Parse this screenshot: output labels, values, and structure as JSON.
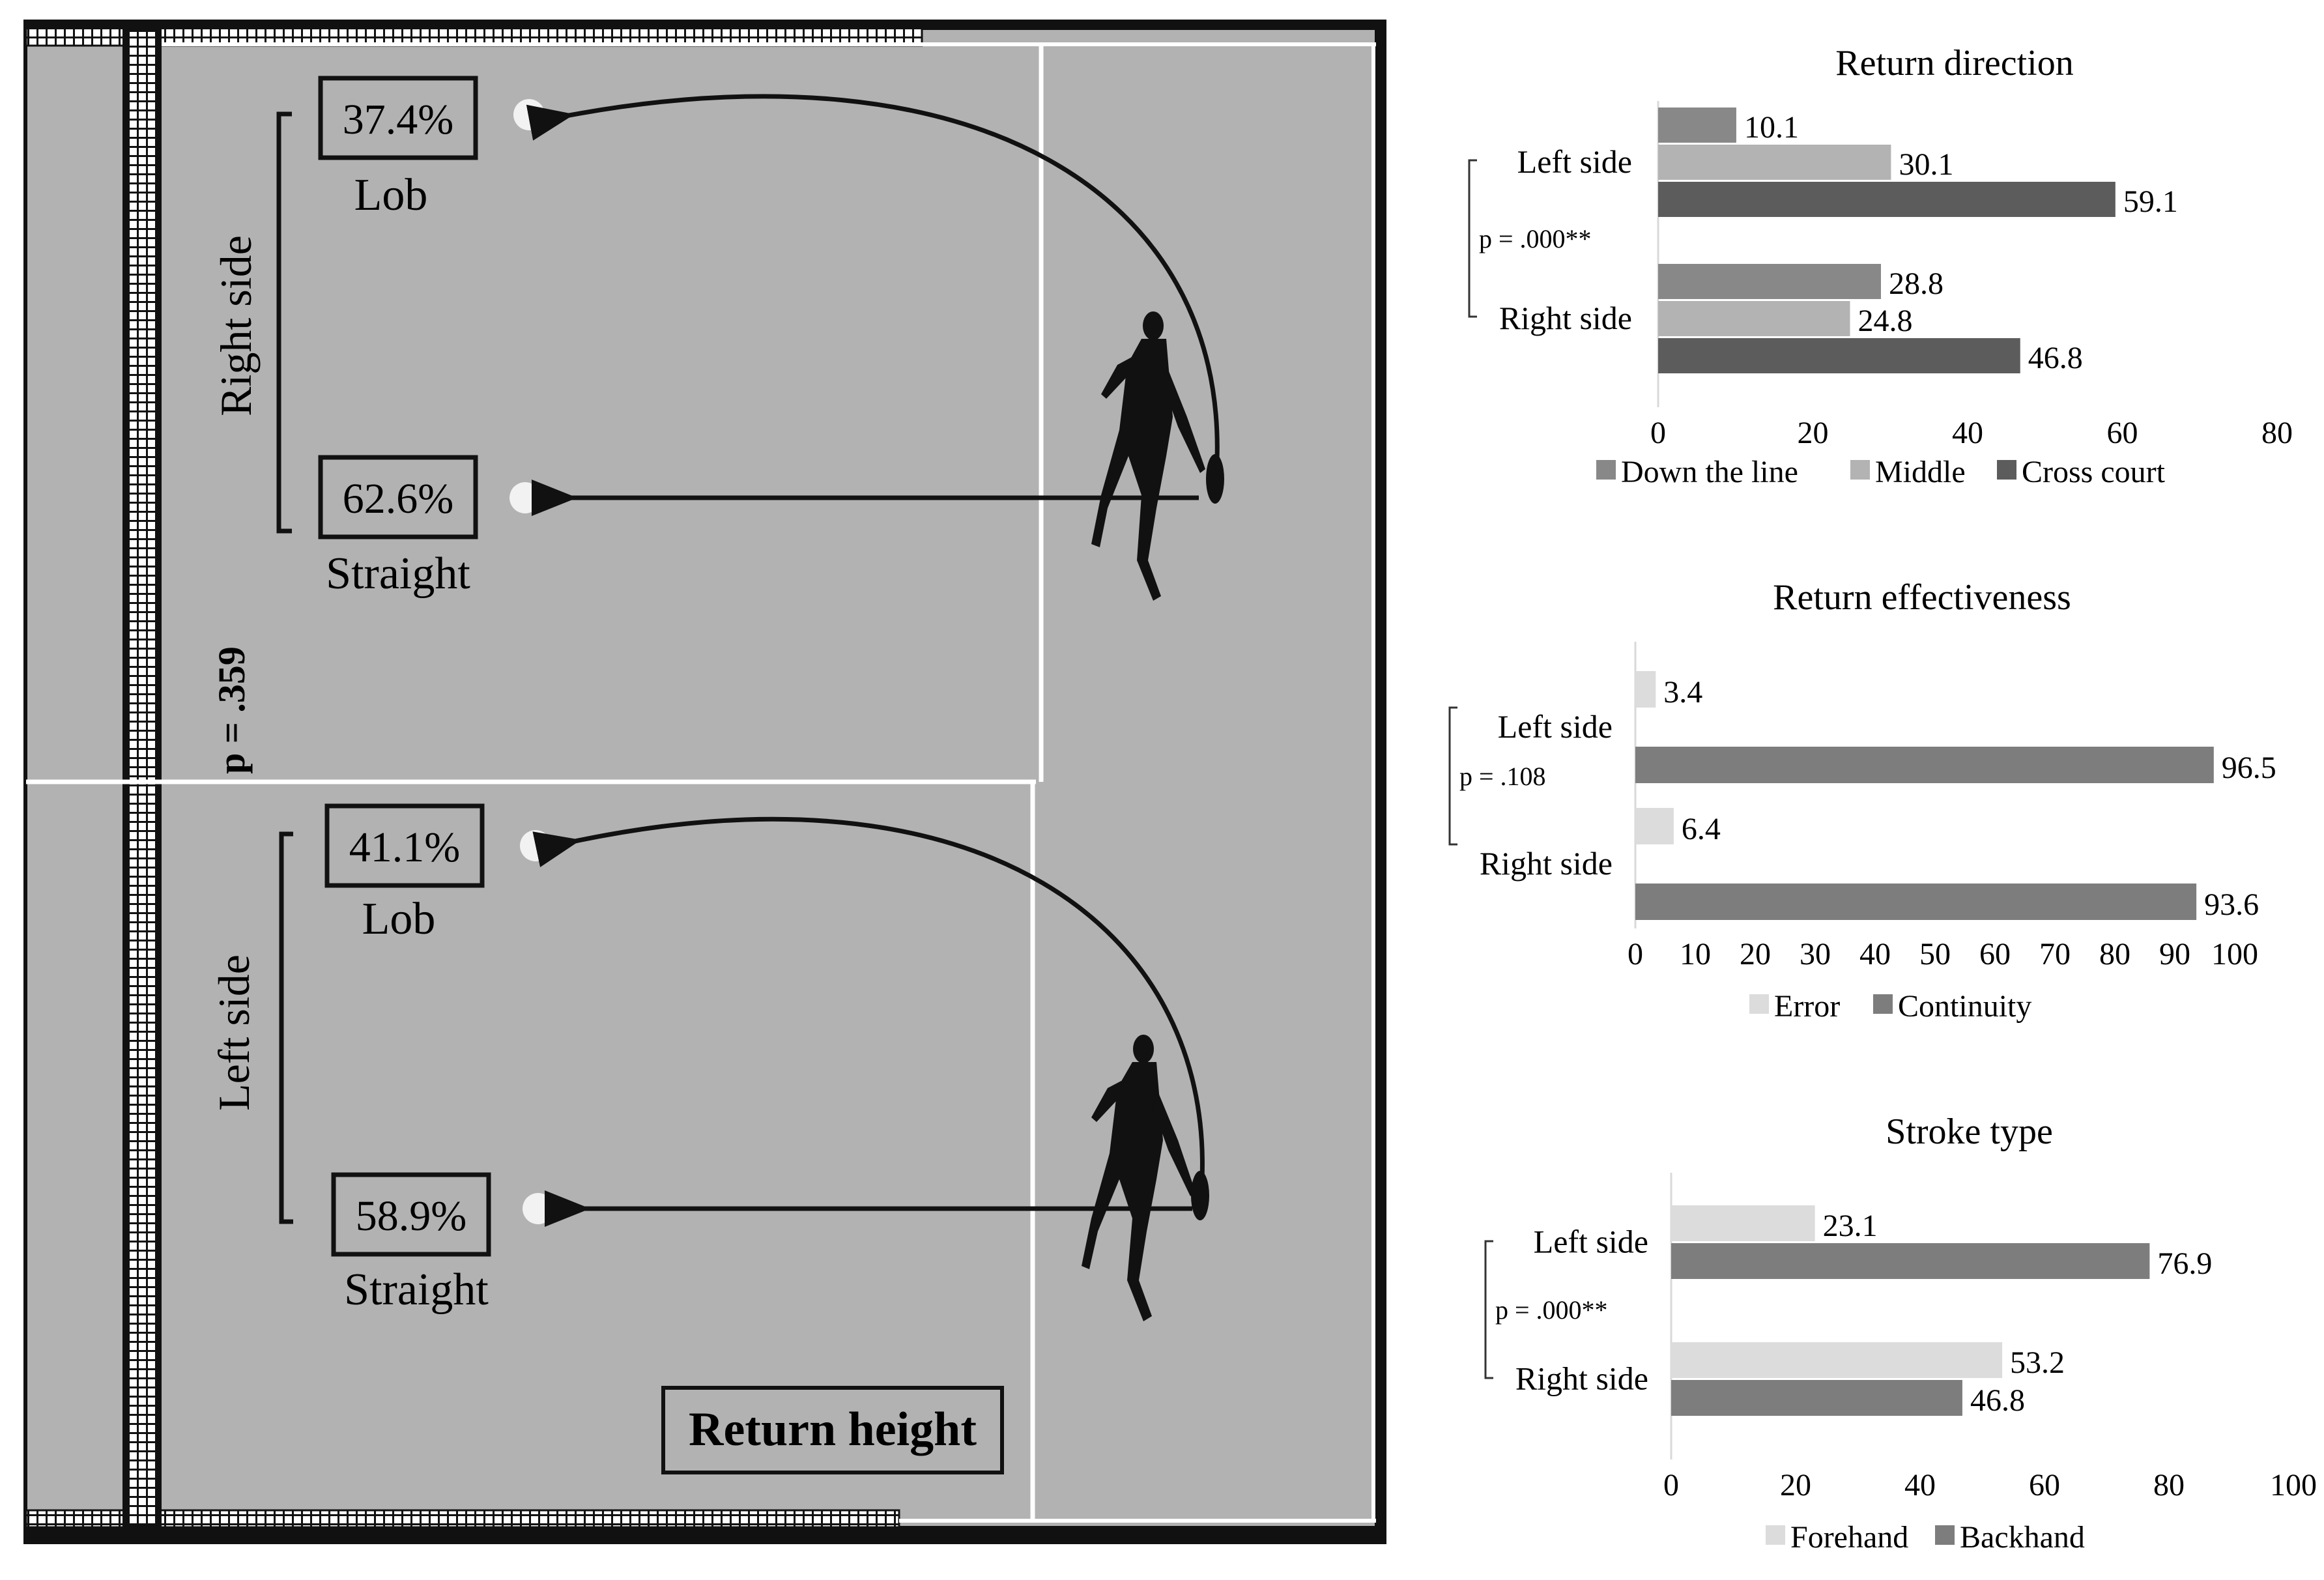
{
  "court": {
    "right_side_label": "Right side",
    "left_side_label": "Left side",
    "p_value": "p = .359",
    "panel_title": "Return height",
    "right_side": {
      "lob_pct": "37.4%",
      "lob_label": "Lob",
      "straight_pct": "62.6%",
      "straight_label": "Straight"
    },
    "left_side": {
      "lob_pct": "41.1%",
      "lob_label": "Lob",
      "straight_pct": "58.9%",
      "straight_label": "Straight"
    }
  },
  "chart_data": [
    {
      "type": "bar",
      "orientation": "horizontal",
      "title": "Return direction",
      "categories": [
        "Left side",
        "Right side"
      ],
      "series": [
        {
          "name": "Down the line",
          "color": "#888888",
          "values": [
            10.1,
            28.8
          ]
        },
        {
          "name": "Middle",
          "color": "#b3b3b3",
          "values": [
            30.1,
            24.8
          ]
        },
        {
          "name": "Cross court",
          "color": "#5c5c5c",
          "values": [
            59.1,
            46.8
          ]
        }
      ],
      "annotation": "p = .000**",
      "xlim": [
        0,
        80
      ],
      "ticks": [
        0,
        20,
        40,
        60,
        80
      ],
      "legend": "bottom"
    },
    {
      "type": "bar",
      "orientation": "horizontal",
      "title": "Return effectiveness",
      "categories": [
        "Left side",
        "Right side"
      ],
      "series": [
        {
          "name": "Error",
          "color": "#dcdcdc",
          "values": [
            3.4,
            6.4
          ]
        },
        {
          "name": "Continuity",
          "color": "#7d7d7d",
          "values": [
            96.5,
            93.6
          ]
        }
      ],
      "annotation": "p = .108",
      "xlim": [
        0,
        100
      ],
      "ticks": [
        0,
        10,
        20,
        30,
        40,
        50,
        60,
        70,
        80,
        90,
        100
      ],
      "legend": "bottom"
    },
    {
      "type": "bar",
      "orientation": "horizontal",
      "title": "Stroke type",
      "categories": [
        "Left side",
        "Right side"
      ],
      "series": [
        {
          "name": "Forehand",
          "color": "#dcdcdc",
          "values": [
            23.1,
            53.2
          ]
        },
        {
          "name": "Backhand",
          "color": "#7d7d7d",
          "values": [
            76.9,
            46.8
          ]
        }
      ],
      "annotation": "p = .000**",
      "xlim": [
        0,
        100
      ],
      "ticks": [
        0,
        20,
        40,
        60,
        80,
        100
      ],
      "legend": "bottom"
    }
  ]
}
